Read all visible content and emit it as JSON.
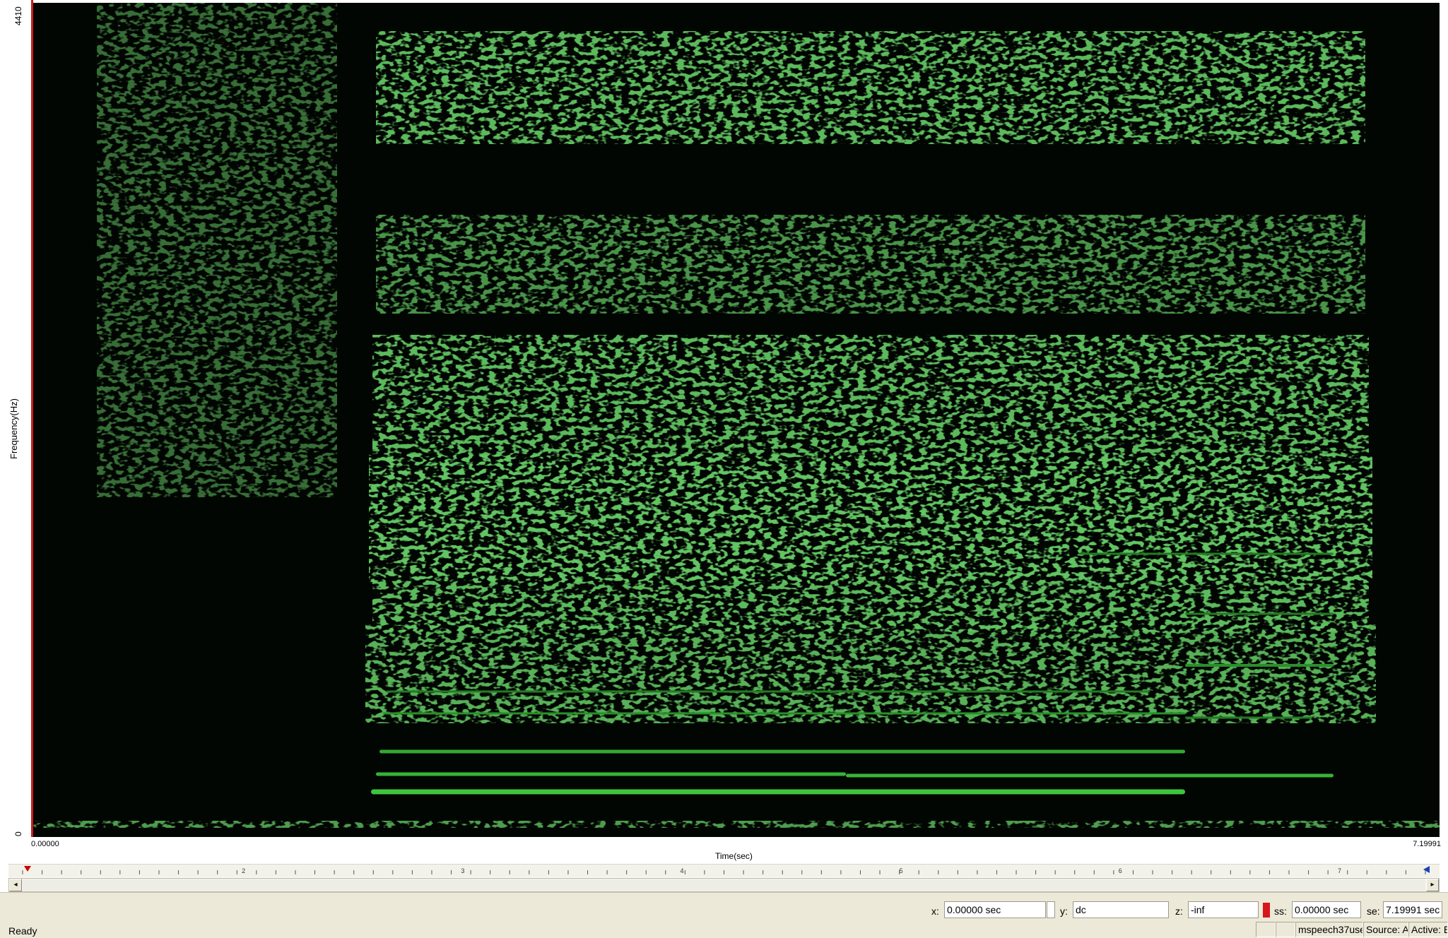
{
  "chart_data": {
    "type": "heatmap",
    "ylabel": "Frequency(Hz)",
    "xlabel": "Time(sec)",
    "ylim": [
      0,
      4410
    ],
    "xlim": [
      0.0,
      7.19991
    ],
    "ytick_labels": [
      "0",
      "4410"
    ],
    "xtick_labels": [
      "0.00000",
      "7.19991"
    ],
    "colormap": [
      "#020602",
      "#1f7a1f",
      "#3ecb3e"
    ]
  },
  "ruler": {
    "labels": [
      "2",
      "3",
      "4",
      "5",
      "6",
      "7"
    ]
  },
  "status": {
    "x_label": "x:",
    "x_value": "0.00000 sec",
    "y_label": "y:",
    "y_value": "dc",
    "z_label": "z:",
    "z_value": "-inf",
    "ss_label": "ss:",
    "ss_value": "0.00000 sec",
    "se_label": "se:",
    "se_value": "7.19991 sec",
    "ready": "Ready",
    "file": "mspeech37use",
    "source": "Source: A",
    "active": "Active: B"
  },
  "colors": {
    "indicator": "#d8151b",
    "axis_line": "#c81e1e"
  }
}
